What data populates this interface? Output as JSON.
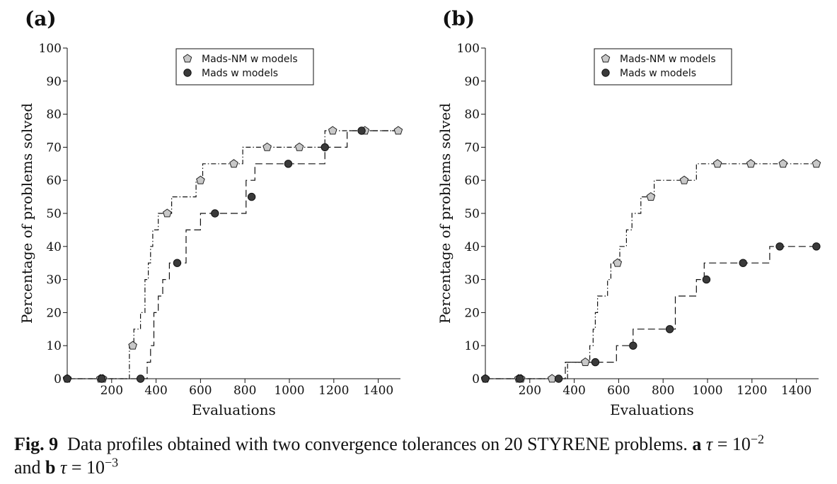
{
  "chart_data": [
    {
      "panel_label": "(a)",
      "type": "line",
      "xlabel": "Evaluations",
      "ylabel": "Percentage of problems solved",
      "xlim": [
        0,
        1500
      ],
      "ylim": [
        0,
        100
      ],
      "xticks": [
        200,
        400,
        600,
        800,
        1000,
        1200,
        1400
      ],
      "yticks": [
        0,
        10,
        20,
        30,
        40,
        50,
        60,
        70,
        80,
        90,
        100
      ],
      "legend": "top-center",
      "series": [
        {
          "name": "Mads-NM w models",
          "marker": "pentagon",
          "linestyle": "dashdot",
          "color": "#c8c8c8",
          "steps": [
            [
              0,
              0
            ],
            [
              280,
              0
            ],
            [
              280,
              10
            ],
            [
              300,
              10
            ],
            [
              300,
              15
            ],
            [
              330,
              15
            ],
            [
              330,
              20
            ],
            [
              350,
              20
            ],
            [
              350,
              30
            ],
            [
              365,
              30
            ],
            [
              365,
              35
            ],
            [
              375,
              35
            ],
            [
              375,
              40
            ],
            [
              385,
              40
            ],
            [
              385,
              45
            ],
            [
              410,
              45
            ],
            [
              410,
              50
            ],
            [
              470,
              50
            ],
            [
              470,
              55
            ],
            [
              580,
              55
            ],
            [
              580,
              60
            ],
            [
              610,
              60
            ],
            [
              610,
              65
            ],
            [
              790,
              65
            ],
            [
              790,
              70
            ],
            [
              1160,
              70
            ],
            [
              1160,
              75
            ],
            [
              1490,
              75
            ]
          ],
          "points": [
            [
              0,
              0
            ],
            [
              150,
              0
            ],
            [
              160,
              0
            ],
            [
              295,
              10
            ],
            [
              450,
              50
            ],
            [
              600,
              60
            ],
            [
              750,
              65
            ],
            [
              900,
              70
            ],
            [
              1045,
              70
            ],
            [
              1195,
              75
            ],
            [
              1340,
              75
            ],
            [
              1490,
              75
            ]
          ]
        },
        {
          "name": "Mads w models",
          "marker": "circle",
          "linestyle": "dashed",
          "color": "#3a3a3a",
          "steps": [
            [
              0,
              0
            ],
            [
              360,
              0
            ],
            [
              360,
              5
            ],
            [
              375,
              5
            ],
            [
              375,
              10
            ],
            [
              390,
              10
            ],
            [
              390,
              20
            ],
            [
              410,
              20
            ],
            [
              410,
              25
            ],
            [
              430,
              25
            ],
            [
              430,
              30
            ],
            [
              460,
              30
            ],
            [
              460,
              35
            ],
            [
              535,
              35
            ],
            [
              535,
              45
            ],
            [
              600,
              45
            ],
            [
              600,
              50
            ],
            [
              805,
              50
            ],
            [
              805,
              60
            ],
            [
              845,
              60
            ],
            [
              845,
              65
            ],
            [
              1160,
              65
            ],
            [
              1160,
              70
            ],
            [
              1260,
              70
            ],
            [
              1260,
              75
            ],
            [
              1490,
              75
            ]
          ],
          "points": [
            [
              0,
              0
            ],
            [
              155,
              0
            ],
            [
              330,
              0
            ],
            [
              495,
              35
            ],
            [
              665,
              50
            ],
            [
              830,
              55
            ],
            [
              995,
              65
            ],
            [
              1160,
              70
            ],
            [
              1325,
              75
            ]
          ]
        }
      ]
    },
    {
      "panel_label": "(b)",
      "type": "line",
      "xlabel": "Evaluations",
      "ylabel": "Percentage of problems solved",
      "xlim": [
        0,
        1500
      ],
      "ylim": [
        0,
        100
      ],
      "xticks": [
        200,
        400,
        600,
        800,
        1000,
        1200,
        1400
      ],
      "yticks": [
        0,
        10,
        20,
        30,
        40,
        50,
        60,
        70,
        80,
        90,
        100
      ],
      "legend": "top-center",
      "series": [
        {
          "name": "Mads-NM w models",
          "marker": "pentagon",
          "linestyle": "dashdot",
          "color": "#c8c8c8",
          "steps": [
            [
              0,
              0
            ],
            [
              370,
              0
            ],
            [
              370,
              5
            ],
            [
              470,
              5
            ],
            [
              470,
              10
            ],
            [
              485,
              10
            ],
            [
              485,
              15
            ],
            [
              495,
              15
            ],
            [
              495,
              20
            ],
            [
              505,
              20
            ],
            [
              505,
              25
            ],
            [
              550,
              25
            ],
            [
              550,
              30
            ],
            [
              565,
              30
            ],
            [
              565,
              35
            ],
            [
              605,
              35
            ],
            [
              605,
              40
            ],
            [
              635,
              40
            ],
            [
              635,
              45
            ],
            [
              660,
              45
            ],
            [
              660,
              50
            ],
            [
              700,
              50
            ],
            [
              700,
              55
            ],
            [
              760,
              55
            ],
            [
              760,
              60
            ],
            [
              950,
              60
            ],
            [
              950,
              65
            ],
            [
              1490,
              65
            ]
          ],
          "points": [
            [
              0,
              0
            ],
            [
              150,
              0
            ],
            [
              160,
              0
            ],
            [
              300,
              0
            ],
            [
              450,
              5
            ],
            [
              595,
              35
            ],
            [
              745,
              55
            ],
            [
              895,
              60
            ],
            [
              1045,
              65
            ],
            [
              1195,
              65
            ],
            [
              1340,
              65
            ],
            [
              1490,
              65
            ]
          ]
        },
        {
          "name": "Mads w models",
          "marker": "circle",
          "linestyle": "dashed",
          "color": "#3a3a3a",
          "steps": [
            [
              0,
              0
            ],
            [
              360,
              0
            ],
            [
              360,
              5
            ],
            [
              590,
              5
            ],
            [
              590,
              10
            ],
            [
              665,
              10
            ],
            [
              665,
              15
            ],
            [
              855,
              15
            ],
            [
              855,
              25
            ],
            [
              950,
              25
            ],
            [
              950,
              30
            ],
            [
              985,
              30
            ],
            [
              985,
              35
            ],
            [
              1280,
              35
            ],
            [
              1280,
              40
            ],
            [
              1490,
              40
            ]
          ],
          "points": [
            [
              0,
              0
            ],
            [
              155,
              0
            ],
            [
              330,
              0
            ],
            [
              495,
              5
            ],
            [
              665,
              10
            ],
            [
              830,
              15
            ],
            [
              995,
              30
            ],
            [
              1160,
              35
            ],
            [
              1325,
              40
            ],
            [
              1490,
              40
            ]
          ]
        }
      ]
    }
  ],
  "caption": {
    "label": "Fig. 9",
    "text": "Data profiles obtained with two convergence tolerances on 20 STYRENE problems.",
    "a_letter": "a",
    "tau": "τ",
    "a_eq": " = 10",
    "a_exp": "−2",
    "and_word": "and",
    "b_letter": "b",
    "b_eq": " = 10",
    "b_exp": "−3"
  }
}
